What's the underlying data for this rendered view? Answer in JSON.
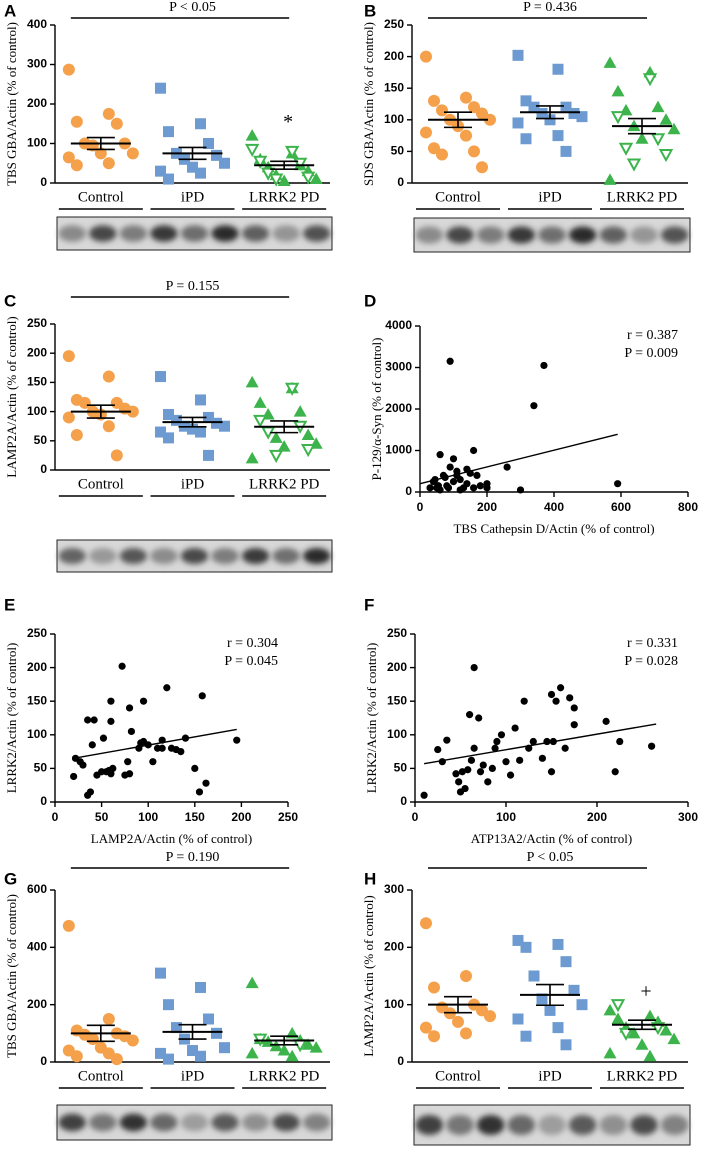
{
  "chart_data": [
    {
      "type": "strip",
      "panel": "A",
      "y_label": "TBS GBA/Actin (% of control)",
      "annotation": "P < 0.05",
      "ylim": [
        0,
        400
      ],
      "yticks": [
        0,
        100,
        200,
        300,
        400
      ],
      "series": [
        {
          "name": "Control",
          "color": "#f5a04a",
          "marker": "circle",
          "values": [
            287,
            175,
            155,
            150,
            100,
            100,
            95,
            75,
            75,
            65,
            50,
            45
          ],
          "mean": 100,
          "sem": 15
        },
        {
          "name": "iPD",
          "color": "#6d9bd1",
          "marker": "square",
          "values": [
            240,
            150,
            130,
            100,
            75,
            70,
            60,
            50,
            40,
            30,
            25,
            10
          ],
          "mean": 75,
          "sem": 15
        },
        {
          "name": "LRRK2 PD",
          "color": "#3cb44b",
          "marker": "triangle",
          "values": [
            120,
            75,
            60,
            45,
            40,
            30,
            20,
            10,
            5
          ],
          "open_values": [
            85,
            80,
            55,
            50,
            25,
            15,
            10
          ],
          "mean": 45,
          "sem": 10,
          "mark_label": "*"
        }
      ]
    },
    {
      "type": "strip",
      "panel": "B",
      "y_label": "SDS GBA/Actin (% of control)",
      "annotation": "P = 0.436",
      "ylim": [
        0,
        250
      ],
      "yticks": [
        0,
        50,
        100,
        150,
        200,
        250
      ],
      "series": [
        {
          "name": "Control",
          "color": "#f5a04a",
          "marker": "circle",
          "values": [
            200,
            135,
            130,
            120,
            115,
            110,
            100,
            100,
            90,
            80,
            75,
            55,
            50,
            45,
            25
          ],
          "mean": 100,
          "sem": 12
        },
        {
          "name": "iPD",
          "color": "#6d9bd1",
          "marker": "square",
          "values": [
            202,
            180,
            130,
            120,
            120,
            110,
            110,
            105,
            100,
            95,
            75,
            70,
            50
          ],
          "mean": 112,
          "sem": 10
        },
        {
          "name": "LRRK2 PD",
          "color": "#3cb44b",
          "marker": "triangle",
          "values": [
            190,
            175,
            145,
            120,
            115,
            100,
            90,
            85,
            70,
            5
          ],
          "open_values": [
            165,
            105,
            70,
            55,
            45,
            30
          ],
          "mean": 90,
          "sem": 12
        }
      ]
    },
    {
      "type": "strip",
      "panel": "C",
      "y_label": "LAMP2A/Actin (% of control)",
      "annotation": "P = 0.155",
      "ylim": [
        0,
        250
      ],
      "yticks": [
        0,
        50,
        100,
        150,
        200,
        250
      ],
      "series": [
        {
          "name": "Control",
          "color": "#f5a04a",
          "marker": "circle",
          "values": [
            195,
            160,
            120,
            115,
            115,
            105,
            100,
            100,
            95,
            90,
            75,
            60,
            25
          ],
          "mean": 100,
          "sem": 11
        },
        {
          "name": "iPD",
          "color": "#6d9bd1",
          "marker": "square",
          "values": [
            160,
            120,
            95,
            90,
            85,
            80,
            75,
            75,
            70,
            65,
            65,
            55,
            25
          ],
          "mean": 82,
          "sem": 8
        },
        {
          "name": "LRRK2 PD",
          "color": "#3cb44b",
          "marker": "triangle",
          "values": [
            150,
            140,
            115,
            100,
            95,
            60,
            55,
            45,
            40,
            20
          ],
          "open_values": [
            140,
            85,
            75,
            65,
            35,
            25
          ],
          "mean": 74,
          "sem": 10
        }
      ]
    },
    {
      "type": "scatter",
      "panel": "D",
      "x_label": "TBS Cathepsin D/Actin (% of control)",
      "y_label": "P-129/α-Syn (% of control)",
      "stat_r": "r = 0.387",
      "stat_p": "P = 0.009",
      "xlim": [
        0,
        800
      ],
      "xticks": [
        0,
        200,
        400,
        600,
        800
      ],
      "ylim": [
        0,
        4000
      ],
      "yticks": [
        0,
        1000,
        2000,
        3000,
        4000
      ],
      "x": [
        90,
        370,
        340,
        590,
        260,
        160,
        100,
        60,
        40,
        50,
        70,
        80,
        100,
        110,
        120,
        130,
        140,
        150,
        170,
        180,
        200,
        60,
        30,
        120,
        200,
        300,
        90,
        75,
        140,
        45,
        110,
        85,
        55,
        160
      ],
      "y": [
        3150,
        3050,
        2080,
        200,
        600,
        1000,
        800,
        900,
        250,
        100,
        400,
        150,
        250,
        500,
        300,
        100,
        200,
        450,
        400,
        150,
        200,
        50,
        100,
        50,
        100,
        50,
        600,
        350,
        550,
        300,
        400,
        100,
        150,
        100
      ],
      "fit": {
        "x": [
          0,
          590
        ],
        "y": [
          200,
          1390
        ]
      }
    },
    {
      "type": "scatter",
      "panel": "E",
      "x_label": "LAMP2A/Actin (% of control)",
      "y_label": "LRRK2/Actin (% of control)",
      "stat_r": "r = 0.304",
      "stat_p": "P = 0.045",
      "xlim": [
        0,
        250
      ],
      "xticks": [
        0,
        50,
        100,
        150,
        200,
        250
      ],
      "ylim": [
        0,
        250
      ],
      "yticks": [
        0,
        50,
        100,
        150,
        200,
        250
      ],
      "x": [
        20,
        22,
        27,
        30,
        35,
        38,
        35,
        42,
        40,
        45,
        50,
        52,
        55,
        58,
        60,
        60,
        62,
        60,
        72,
        75,
        78,
        80,
        80,
        82,
        90,
        92,
        95,
        95,
        100,
        105,
        110,
        115,
        115,
        120,
        125,
        130,
        135,
        140,
        150,
        155,
        158,
        162,
        195
      ],
      "y": [
        38,
        65,
        60,
        55,
        10,
        15,
        122,
        122,
        85,
        40,
        45,
        95,
        45,
        47,
        150,
        42,
        50,
        120,
        202,
        40,
        60,
        42,
        140,
        105,
        80,
        88,
        90,
        150,
        85,
        60,
        80,
        80,
        92,
        170,
        80,
        78,
        75,
        95,
        50,
        15,
        158,
        28,
        92
      ],
      "fit": {
        "x": [
          20,
          195
        ],
        "y": [
          65,
          108
        ]
      }
    },
    {
      "type": "scatter",
      "panel": "F",
      "x_label": "ATP13A2/Actin (% of control)",
      "y_label": "LRRK2/Actin (% of control)",
      "stat_r": "r = 0.331",
      "stat_p": "P = 0.028",
      "xlim": [
        0,
        300
      ],
      "xticks": [
        0,
        100,
        200,
        300
      ],
      "ylim": [
        0,
        250
      ],
      "yticks": [
        0,
        50,
        100,
        150,
        200,
        250
      ],
      "x": [
        10,
        25,
        30,
        35,
        45,
        48,
        50,
        52,
        55,
        58,
        60,
        62,
        65,
        65,
        70,
        72,
        75,
        80,
        85,
        88,
        90,
        95,
        100,
        105,
        110,
        115,
        120,
        125,
        130,
        140,
        145,
        150,
        150,
        152,
        155,
        160,
        165,
        170,
        175,
        175,
        210,
        220,
        225,
        260
      ],
      "y": [
        10,
        78,
        60,
        92,
        42,
        30,
        15,
        45,
        20,
        48,
        130,
        62,
        200,
        80,
        125,
        45,
        55,
        30,
        50,
        80,
        90,
        100,
        60,
        40,
        110,
        62,
        150,
        80,
        90,
        65,
        90,
        45,
        160,
        90,
        150,
        170,
        80,
        155,
        140,
        115,
        120,
        45,
        90,
        83
      ],
      "fit": {
        "x": [
          10,
          265
        ],
        "y": [
          57,
          116
        ]
      }
    },
    {
      "type": "strip",
      "panel": "G",
      "y_label": "TBS GBA/Actin (% of control)",
      "annotation": "P = 0.190",
      "ylim": [
        0,
        600
      ],
      "yticks": [
        0,
        200,
        400,
        600
      ],
      "series": [
        {
          "name": "Control",
          "color": "#f5a04a",
          "marker": "circle",
          "values": [
            475,
            150,
            110,
            100,
            95,
            90,
            80,
            75,
            50,
            40,
            30,
            20,
            10
          ],
          "mean": 100,
          "sem": 28
        },
        {
          "name": "iPD",
          "color": "#6d9bd1",
          "marker": "square",
          "values": [
            310,
            260,
            200,
            150,
            120,
            100,
            80,
            50,
            40,
            30,
            20,
            10
          ],
          "mean": 105,
          "sem": 25
        },
        {
          "name": "LRRK2 PD",
          "color": "#3cb44b",
          "marker": "triangle",
          "values": [
            275,
            100,
            80,
            75,
            70,
            60,
            55,
            50,
            40,
            30,
            20
          ],
          "open_values": [
            80,
            60
          ],
          "mean": 75,
          "sem": 15
        }
      ]
    },
    {
      "type": "strip",
      "panel": "H",
      "y_label": "LAMP2A/Actin (% of control)",
      "annotation": "P < 0.05",
      "ylim": [
        0,
        300
      ],
      "yticks": [
        0,
        100,
        200,
        300
      ],
      "series": [
        {
          "name": "Control",
          "color": "#f5a04a",
          "marker": "circle",
          "values": [
            242,
            150,
            130,
            100,
            95,
            90,
            85,
            80,
            70,
            60,
            50,
            45
          ],
          "mean": 100,
          "sem": 14
        },
        {
          "name": "iPD",
          "color": "#6d9bd1",
          "marker": "square",
          "values": [
            212,
            205,
            200,
            175,
            150,
            125,
            110,
            100,
            90,
            75,
            60,
            45,
            30
          ],
          "mean": 117,
          "sem": 18
        },
        {
          "name": "LRRK2 PD",
          "color": "#3cb44b",
          "marker": "triangle",
          "values": [
            90,
            80,
            75,
            70,
            60,
            55,
            50,
            40,
            30,
            15,
            10
          ],
          "open_values": [
            100,
            60,
            50
          ],
          "mean": 65,
          "sem": 8,
          "mark_label": "+"
        }
      ]
    }
  ]
}
